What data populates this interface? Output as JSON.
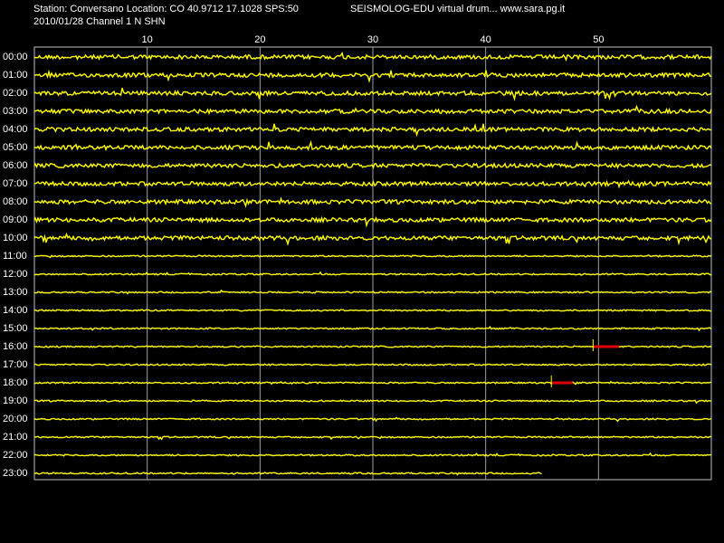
{
  "header": {
    "station": "Station: Conversano Location: CO 40.9712 17.1028 SPS:50",
    "app": "SEISMOLOG-EDU virtual drum... www.sara.pg.it",
    "date_channel": "2010/01/28  Channel 1 N SHN"
  },
  "drum": {
    "xlim": [
      0,
      60
    ],
    "xticks": [
      10,
      20,
      30,
      40,
      50
    ],
    "hours": [
      "00:00",
      "01:00",
      "02:00",
      "03:00",
      "04:00",
      "05:00",
      "06:00",
      "07:00",
      "08:00",
      "09:00",
      "10:00",
      "11:00",
      "12:00",
      "13:00",
      "14:00",
      "15:00",
      "16:00",
      "17:00",
      "18:00",
      "19:00",
      "20:00",
      "21:00",
      "22:00",
      "23:00"
    ],
    "last_trace_end_minute": 45,
    "events": [
      {
        "row": 16,
        "start": 49.6,
        "end": 51.8
      },
      {
        "row": 18,
        "start": 45.9,
        "end": 47.7
      }
    ]
  }
}
